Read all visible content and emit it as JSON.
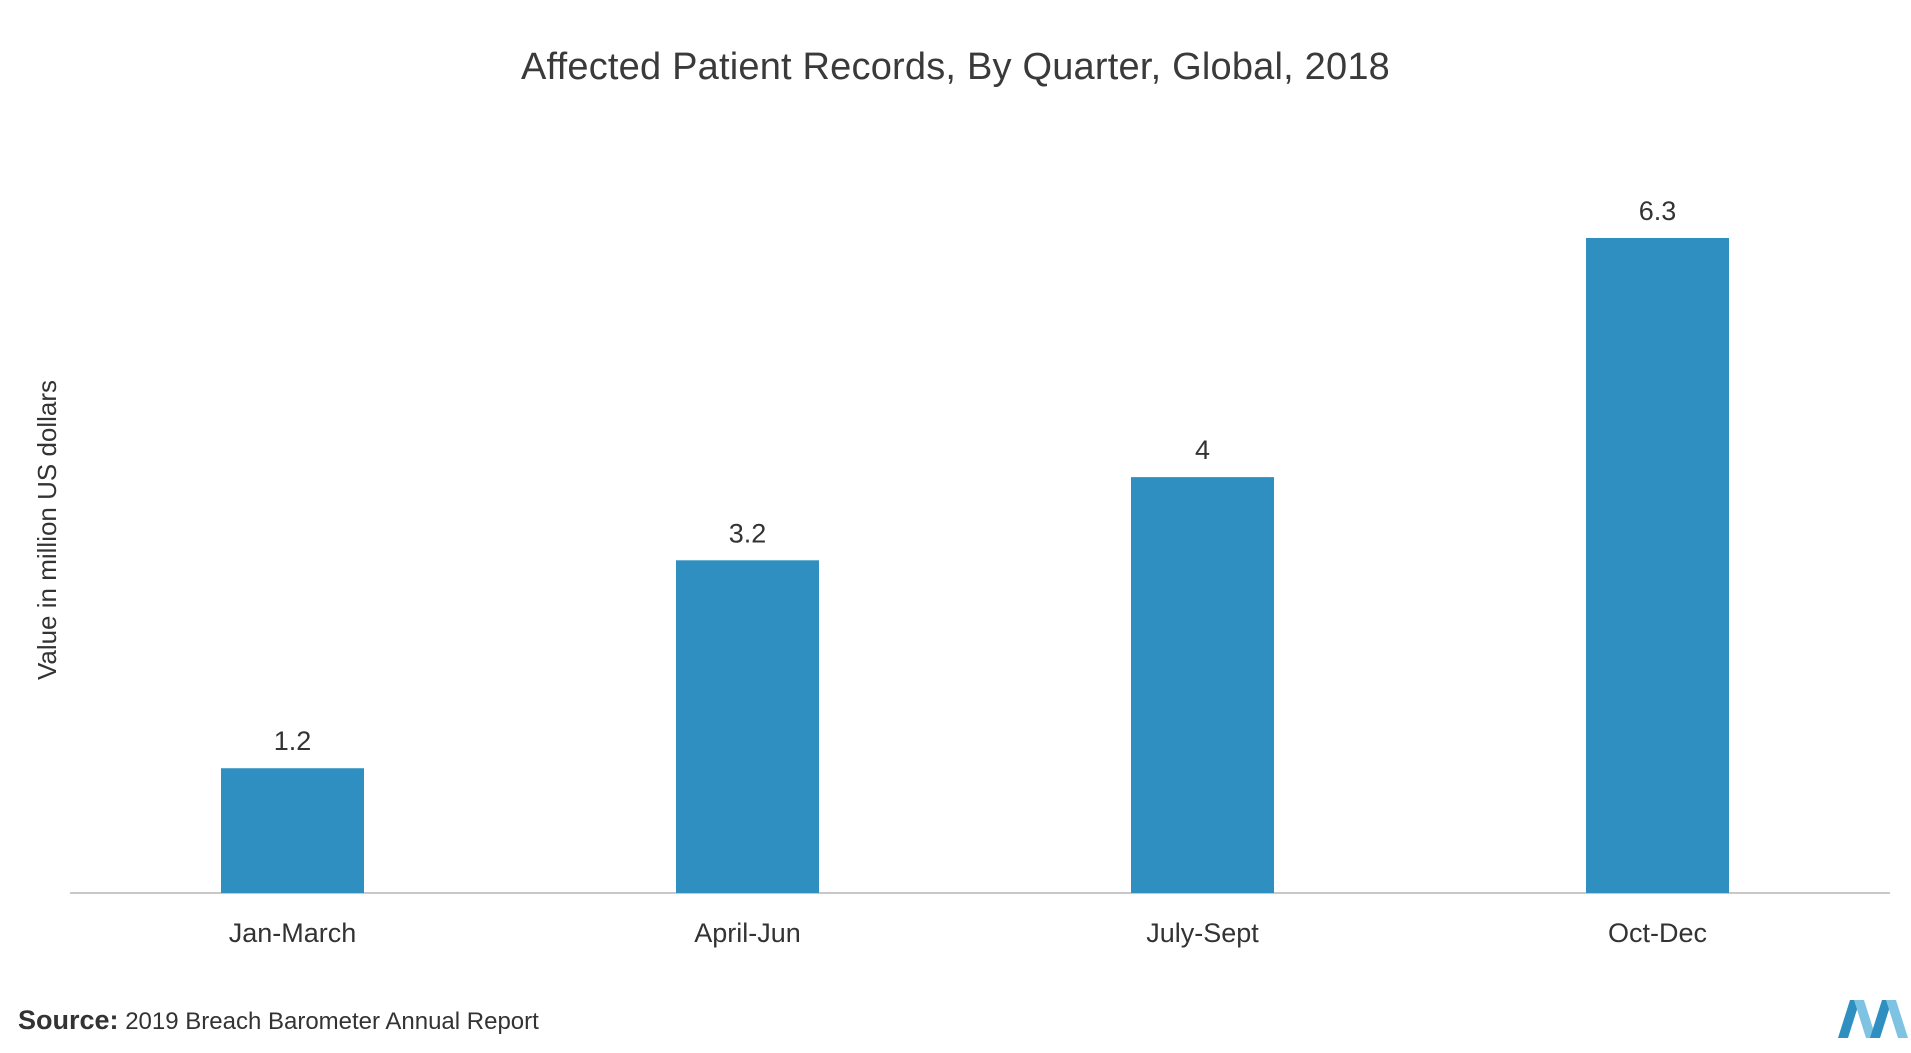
{
  "chart_data": {
    "type": "bar",
    "title": "Affected Patient Records, By Quarter, Global, 2018",
    "ylabel": "Value in million US dollars",
    "xlabel": "",
    "categories": [
      "Jan-March",
      "April-Jun",
      "July-Sept",
      "Oct-Dec"
    ],
    "values": [
      1.2,
      3.2,
      4,
      6.3
    ],
    "value_labels": [
      "1.2",
      "3.2",
      "4",
      "6.3"
    ],
    "ylim": [
      0,
      6.3
    ],
    "grid": false,
    "legend": "none",
    "bar_color": "#2e8fc0"
  },
  "footer": {
    "source_key": "Source:",
    "source_text": "2019 Breach Barometer Annual Report"
  },
  "colors": {
    "bar": "#2e8fc0",
    "axis": "#c8c8c8",
    "logo": "#2e8fc0"
  }
}
